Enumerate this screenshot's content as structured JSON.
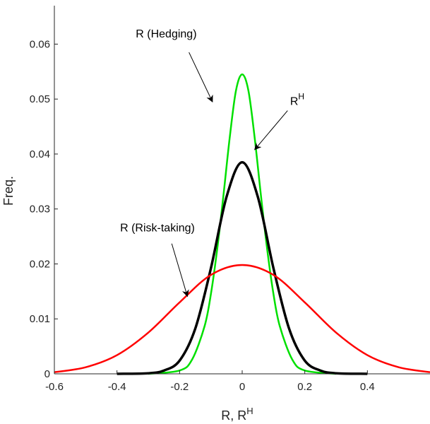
{
  "chart_data": {
    "type": "line",
    "title": "",
    "xlabel": "R, R",
    "xlabel_superscript": "H",
    "ylabel": "Freq.",
    "xlim": [
      -0.6,
      0.6
    ],
    "ylim": [
      0,
      0.067
    ],
    "xticks": [
      -0.6,
      -0.4,
      -0.2,
      0,
      0.2,
      0.4
    ],
    "xtick_labels": [
      "-0.6",
      "-0.4",
      "-0.2",
      "0",
      "0.2",
      "0.4"
    ],
    "yticks": [
      0,
      0.01,
      0.02,
      0.03,
      0.04,
      0.05,
      0.06
    ],
    "ytick_labels": [
      "0",
      "0.01",
      "0.02",
      "0.03",
      "0.04",
      "0.05",
      "0.06"
    ],
    "grid": false,
    "series": [
      {
        "color": "#00e000",
        "x": [
          -0.3,
          -0.2,
          -0.16,
          -0.12,
          -0.1,
          -0.08,
          -0.06,
          -0.04,
          -0.02,
          0,
          0.02,
          0.04,
          0.06,
          0.08,
          0.1,
          0.12,
          0.16,
          0.2,
          0.3
        ],
        "y": [
          0,
          0.0006,
          0.0026,
          0.0087,
          0.0145,
          0.0226,
          0.0324,
          0.0429,
          0.0515,
          0.0545,
          0.0515,
          0.0429,
          0.0324,
          0.0226,
          0.0145,
          0.0087,
          0.0026,
          0.0006,
          0
        ]
      },
      {
        "color": "#000000",
        "x": [
          -0.4,
          -0.3,
          -0.25,
          -0.2,
          -0.15,
          -0.1,
          -0.05,
          0,
          0.05,
          0.1,
          0.15,
          0.2,
          0.25,
          0.3,
          0.4
        ],
        "y": [
          0,
          0.0001,
          0.0006,
          0.0024,
          0.0082,
          0.0192,
          0.0322,
          0.0385,
          0.0322,
          0.0192,
          0.0082,
          0.0024,
          0.0006,
          0.0001,
          0
        ]
      },
      {
        "color": "#ff0000",
        "x": [
          -0.6,
          -0.5,
          -0.4,
          -0.3,
          -0.2,
          -0.1,
          0,
          0.1,
          0.2,
          0.3,
          0.4,
          0.5,
          0.6
        ],
        "y": [
          0.0003,
          0.0012,
          0.0034,
          0.0075,
          0.013,
          0.018,
          0.0198,
          0.018,
          0.013,
          0.0075,
          0.0034,
          0.0012,
          0.0003
        ]
      }
    ],
    "annotations": [
      {
        "text": "R (Hedging)",
        "text_x": -0.34,
        "text_y": 0.0612,
        "arrow_from": [
          -0.17,
          0.0585
        ],
        "arrow_to": [
          -0.095,
          0.0495
        ]
      },
      {
        "text": "R",
        "superscript": "H",
        "text_x": 0.153,
        "text_y": 0.0489,
        "arrow_from": [
          0.145,
          0.0479
        ],
        "arrow_to": [
          0.04,
          0.0408
        ]
      },
      {
        "text": "R (Risk-taking)",
        "text_x": -0.39,
        "text_y": 0.0259,
        "arrow_from": [
          -0.225,
          0.0237
        ],
        "arrow_to": [
          -0.175,
          0.0141
        ]
      }
    ]
  }
}
